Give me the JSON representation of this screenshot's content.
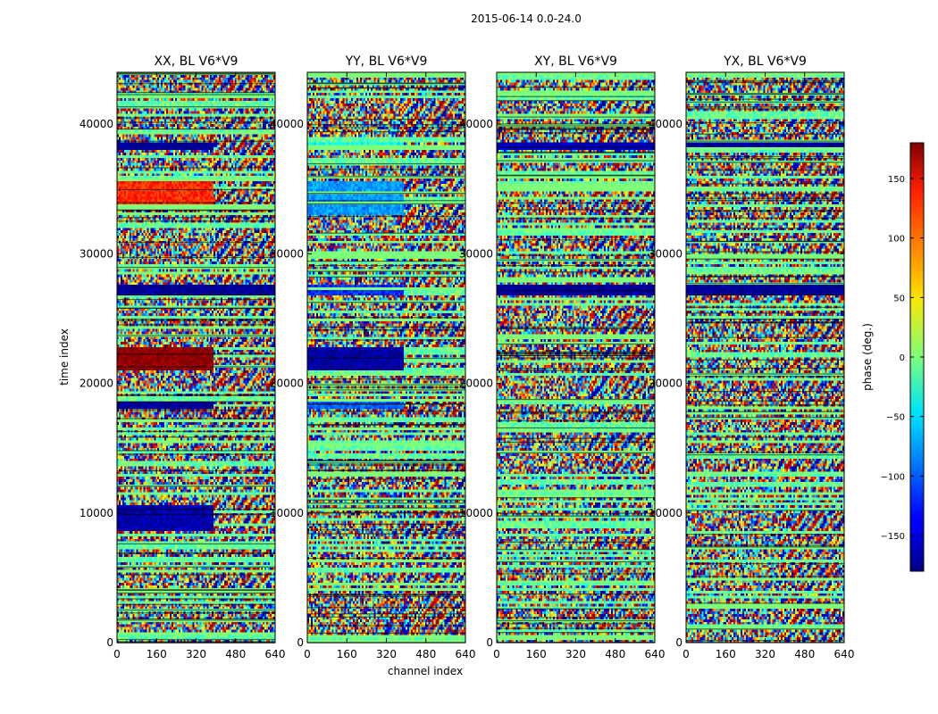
{
  "figure": {
    "suptitle": "2015-06-14 0.0-24.0"
  },
  "chart_data": {
    "type": "heatmap",
    "x_label": "channel index",
    "y_label": "time index",
    "x_ticks": [
      0,
      160,
      320,
      480,
      640
    ],
    "y_ticks": [
      0,
      10000,
      20000,
      30000,
      40000
    ],
    "xlim": [
      0,
      640
    ],
    "ylim": [
      0,
      44000
    ],
    "colormap": "jet",
    "colorbar": {
      "label": "phase (deg.)",
      "range": [
        -180,
        180
      ],
      "ticks": [
        -150,
        -100,
        -50,
        0,
        50,
        100,
        150
      ]
    },
    "panels": [
      {
        "title": "XX, BL V6*V9",
        "strong_bands": [
          {
            "from": 21000,
            "to": 22700,
            "value": 178,
            "channel_split": 390
          },
          {
            "from": 33500,
            "to": 35500,
            "value": 120,
            "channel_split": 390
          },
          {
            "from": 26800,
            "to": 27600,
            "value": -175,
            "channel_split": 640
          },
          {
            "from": 38000,
            "to": 38600,
            "value": -175,
            "channel_split": 390
          },
          {
            "from": 18000,
            "to": 18500,
            "value": -175,
            "channel_split": 390
          },
          {
            "from": 8600,
            "to": 10600,
            "value": -165,
            "channel_split": 390
          }
        ]
      },
      {
        "title": "YY, BL V6*V9",
        "strong_bands": [
          {
            "from": 21000,
            "to": 22700,
            "value": -170,
            "channel_split": 390
          },
          {
            "from": 33000,
            "to": 35500,
            "value": -80,
            "channel_split": 390
          },
          {
            "from": 26800,
            "to": 27600,
            "value": -120,
            "channel_split": 390
          },
          {
            "from": 18000,
            "to": 18500,
            "value": -100,
            "channel_split": 390
          },
          {
            "from": 38000,
            "to": 38600,
            "value": -40,
            "channel_split": 390
          }
        ]
      },
      {
        "title": "XY, BL V6*V9",
        "strong_bands": [
          {
            "from": 26800,
            "to": 27600,
            "value": -175,
            "channel_split": 640
          },
          {
            "from": 38000,
            "to": 38600,
            "value": -160,
            "channel_split": 640
          }
        ]
      },
      {
        "title": "YX, BL V6*V9",
        "strong_bands": [
          {
            "from": 26800,
            "to": 27600,
            "value": -175,
            "channel_split": 640
          },
          {
            "from": 38000,
            "to": 38600,
            "value": -160,
            "channel_split": 640
          }
        ]
      }
    ]
  }
}
